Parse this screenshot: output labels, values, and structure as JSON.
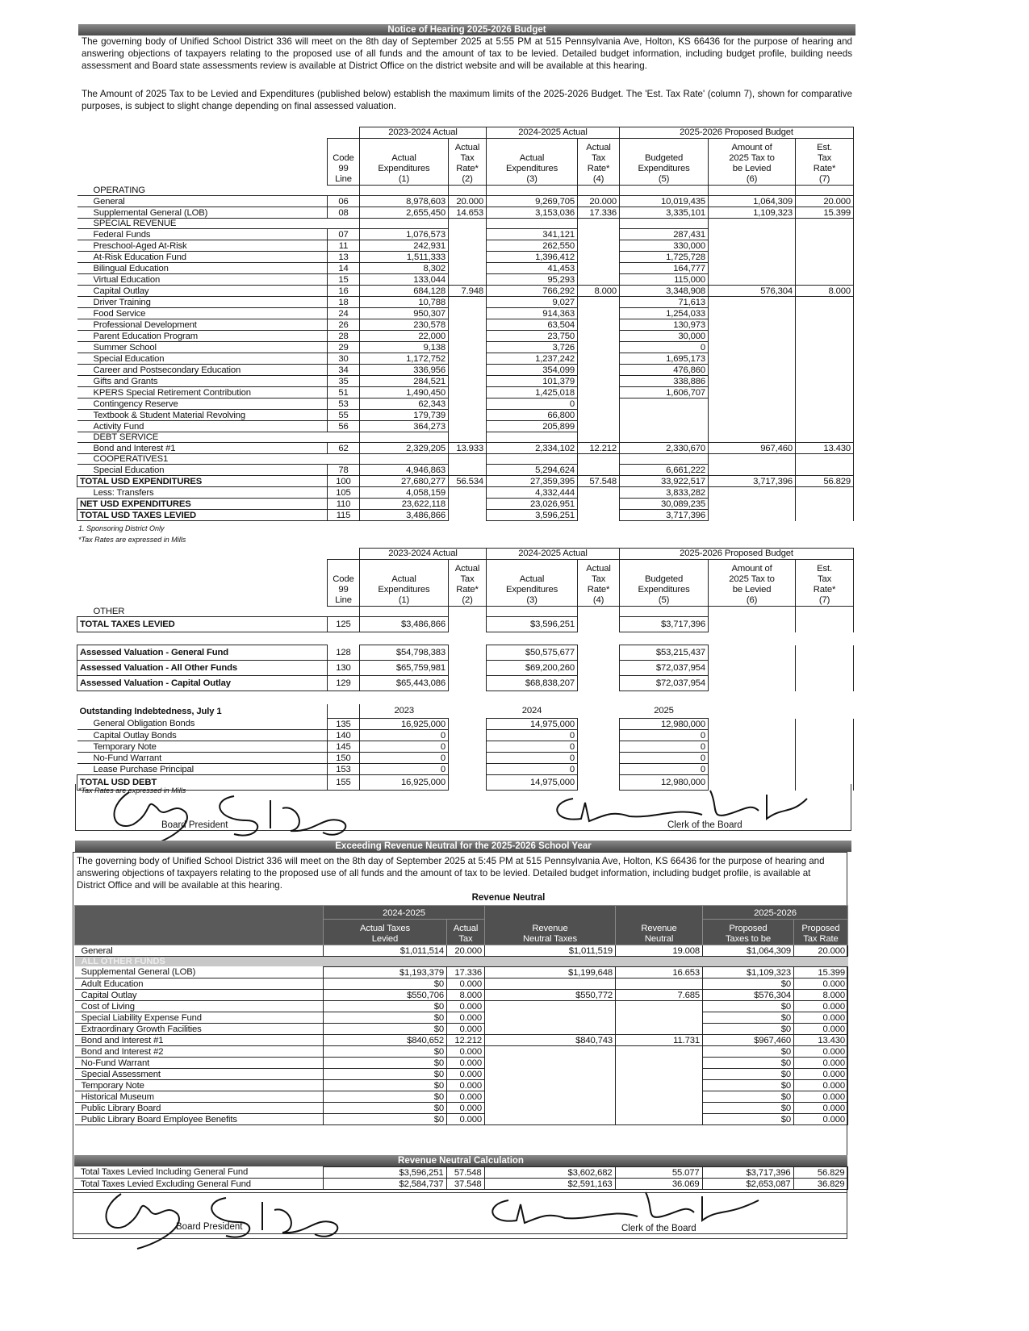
{
  "notice": {
    "title": "Notice of Hearing 2025-2026 Budget",
    "paragraph1": "The governing body of Unified School District 336 will meet on the 8th  day of September 2025 at 5:55 PM at 515 Pennsylvania Ave, Holton, KS 66436 for the purpose of hearing and answering objections of taxpayers relating to the proposed use of all funds and the amount of tax to be levied. Detailed budget information, including budget profile, building needs assessment and Board state assessments review is available at District Office on the district website and will be available at this hearing.",
    "paragraph2": "The Amount of 2025 Tax to be Levied and Expenditures (published below) establish the maximum limits of the 2025-2026 Budget.  The 'Est. Tax Rate' (column 7), shown for comparative purposes, is subject to slight change depending on final assessed valuation."
  },
  "budget_headers": {
    "groups": [
      "2023-2024 Actual",
      "2024-2025 Actual",
      "2025-2026 Proposed Budget"
    ],
    "columns": [
      "Code\n99\nLine",
      "Actual\nExpenditures\n(1)",
      "Actual\nTax\nRate*\n(2)",
      "Actual\nExpenditures\n(3)",
      "Actual\nTax\nRate*\n(4)",
      "Budgeted\nExpenditures\n(5)",
      "Amount of\n2025 Tax to\nbe Levied\n(6)",
      "Est.\nTax\nRate*\n(7)"
    ]
  },
  "budget_table": {
    "rows": [
      {
        "type": "section",
        "label": "OPERATING"
      },
      {
        "label": "General",
        "code": "06",
        "values": [
          "8,978,603",
          "20.000",
          "9,269,705",
          "20.000",
          "10,019,435",
          "1,064,309",
          "20.000"
        ]
      },
      {
        "label": "Supplemental General (LOB)",
        "code": "08",
        "values": [
          "2,655,450",
          "14.653",
          "3,153,036",
          "17.336",
          "3,335,101",
          "1,109,323",
          "15.399"
        ]
      },
      {
        "type": "section",
        "label": "SPECIAL REVENUE"
      },
      {
        "label": "Federal Funds",
        "code": "07",
        "values": [
          "1,076,573",
          "",
          "341,121",
          "",
          "287,431",
          "",
          ""
        ]
      },
      {
        "label": "Preschool-Aged At-Risk",
        "code": "11",
        "values": [
          "242,931",
          "",
          "262,550",
          "",
          "330,000",
          "",
          ""
        ]
      },
      {
        "label": "At-Risk Education Fund",
        "code": "13",
        "values": [
          "1,511,333",
          "",
          "1,396,412",
          "",
          "1,725,728",
          "",
          ""
        ]
      },
      {
        "label": "Bilingual Education",
        "code": "14",
        "values": [
          "8,302",
          "",
          "41,453",
          "",
          "164,777",
          "",
          ""
        ]
      },
      {
        "label": "Virtual Education",
        "code": "15",
        "values": [
          "133,044",
          "",
          "95,293",
          "",
          "115,000",
          "",
          ""
        ]
      },
      {
        "label": "Capital Outlay",
        "code": "16",
        "values": [
          "684,128",
          "7.948",
          "766,292",
          "8.000",
          "3,348,908",
          "576,304",
          "8.000"
        ]
      },
      {
        "label": "Driver Training",
        "code": "18",
        "values": [
          "10,788",
          "",
          "9,027",
          "",
          "71,613",
          "",
          ""
        ]
      },
      {
        "label": "Food Service",
        "code": "24",
        "values": [
          "950,307",
          "",
          "914,363",
          "",
          "1,254,033",
          "",
          ""
        ]
      },
      {
        "label": "Professional Development",
        "code": "26",
        "values": [
          "230,578",
          "",
          "63,504",
          "",
          "130,973",
          "",
          ""
        ]
      },
      {
        "label": "Parent Education Program",
        "code": "28",
        "values": [
          "22,000",
          "",
          "23,750",
          "",
          "30,000",
          "",
          ""
        ]
      },
      {
        "label": "Summer School",
        "code": "29",
        "values": [
          "9,138",
          "",
          "3,726",
          "",
          "0",
          "",
          ""
        ]
      },
      {
        "label": "Special Education",
        "code": "30",
        "values": [
          "1,172,752",
          "",
          "1,237,242",
          "",
          "1,695,173",
          "",
          ""
        ]
      },
      {
        "label": "Career and Postsecondary Education",
        "code": "34",
        "values": [
          "336,956",
          "",
          "354,099",
          "",
          "476,860",
          "",
          ""
        ]
      },
      {
        "label": "Gifts and Grants",
        "code": "35",
        "values": [
          "284,521",
          "",
          "101,379",
          "",
          "338,886",
          "",
          ""
        ]
      },
      {
        "label": "KPERS Special Retirement Contribution",
        "code": "51",
        "values": [
          "1,490,450",
          "",
          "1,425,018",
          "",
          "1,606,707",
          "",
          ""
        ]
      },
      {
        "label": "Contingency Reserve",
        "code": "53",
        "values": [
          "62,343",
          "",
          "0",
          "",
          "",
          "",
          ""
        ]
      },
      {
        "label": "Textbook & Student Material Revolving",
        "code": "55",
        "values": [
          "179,739",
          "",
          "66,800",
          "",
          "",
          "",
          ""
        ]
      },
      {
        "label": "Activity Fund",
        "code": "56",
        "values": [
          "364,273",
          "",
          "205,899",
          "",
          "",
          "",
          ""
        ]
      },
      {
        "type": "section",
        "label": "DEBT SERVICE"
      },
      {
        "label": "Bond and Interest #1",
        "code": "62",
        "values": [
          "2,329,205",
          "13.933",
          "2,334,102",
          "12.212",
          "2,330,670",
          "967,460",
          "13.430"
        ]
      },
      {
        "type": "section",
        "label": "COOPERATIVES1"
      },
      {
        "label": "Special Education",
        "code": "78",
        "values": [
          "4,946,863",
          "",
          "5,294,624",
          "",
          "6,661,222",
          "",
          ""
        ]
      },
      {
        "type": "bold",
        "label": "TOTAL USD EXPENDITURES",
        "code": "100",
        "values": [
          "27,680,277",
          "56.534",
          "27,359,395",
          "57.548",
          "33,922,517",
          "3,717,396",
          "56.829"
        ]
      },
      {
        "label": "Less: Transfers",
        "code": "105",
        "values": [
          "4,058,159",
          "",
          "4,332,444",
          "",
          "3,833,282",
          "",
          ""
        ]
      },
      {
        "type": "bold",
        "label": "NET USD EXPENDITURES",
        "code": "110",
        "values": [
          "23,622,118",
          "",
          "23,026,951",
          "",
          "30,089,235",
          "",
          ""
        ]
      },
      {
        "type": "bold",
        "label": "TOTAL USD TAXES LEVIED",
        "code": "115",
        "values": [
          "3,486,866",
          "",
          "3,596,251",
          "",
          "3,717,396",
          "",
          ""
        ]
      }
    ],
    "footnote1": "1. Sponsoring District Only",
    "footnote2": "*Tax Rates are expressed in Mills"
  },
  "other_table": {
    "rows": [
      {
        "type": "section",
        "label": "OTHER"
      },
      {
        "type": "bold",
        "label": "TOTAL TAXES LEVIED",
        "code": "125",
        "values": [
          "$3,486,866",
          "",
          "$3,596,251",
          "",
          "$3,717,396",
          "",
          ""
        ]
      },
      {
        "type": "blank"
      },
      {
        "type": "bold",
        "label": "Assessed Valuation - General Fund",
        "code": "128",
        "values": [
          "$54,798,383",
          "",
          "$50,575,677",
          "",
          "$53,215,437",
          "",
          ""
        ]
      },
      {
        "type": "bold",
        "label": "Assessed Valuation - All Other Funds",
        "code": "130",
        "values": [
          "$65,759,981",
          "",
          "$69,200,260",
          "",
          "$72,037,954",
          "",
          ""
        ]
      },
      {
        "type": "bold",
        "label": "Assessed Valuation - Capital Outlay",
        "code": "129",
        "values": [
          "$65,443,086",
          "",
          "$68,838,207",
          "",
          "$72,037,954",
          "",
          ""
        ]
      },
      {
        "type": "blank"
      },
      {
        "type": "heading",
        "label": "Outstanding Indebtedness, July 1",
        "code": "",
        "values": [
          "2023",
          "",
          "2024",
          "",
          "2025",
          "",
          ""
        ]
      },
      {
        "label": "General Obligation Bonds",
        "code": "135",
        "values": [
          "16,925,000",
          "",
          "14,975,000",
          "",
          "12,980,000",
          "",
          ""
        ]
      },
      {
        "label": "Capital Outlay Bonds",
        "code": "140",
        "values": [
          "0",
          "",
          "0",
          "",
          "0",
          "",
          ""
        ]
      },
      {
        "label": "Temporary Note",
        "code": "145",
        "values": [
          "0",
          "",
          "0",
          "",
          "0",
          "",
          ""
        ]
      },
      {
        "label": "No-Fund Warrant",
        "code": "150",
        "values": [
          "0",
          "",
          "0",
          "",
          "0",
          "",
          ""
        ]
      },
      {
        "label": "Lease Purchase Principal",
        "code": "153",
        "values": [
          "0",
          "",
          "0",
          "",
          "0",
          "",
          ""
        ]
      },
      {
        "type": "bold",
        "label": "TOTAL USD DEBT",
        "code": "155",
        "values": [
          "16,925,000",
          "",
          "14,975,000",
          "",
          "12,980,000",
          "",
          ""
        ]
      }
    ],
    "footnote": "*Tax Rates are expressed in Mills"
  },
  "signatures": {
    "president_label": "Board President",
    "clerk_label": "Clerk of the Board"
  },
  "revenue_neutral": {
    "banner": "Exceeding Revenue Neutral for the 2025-2026 School Year",
    "paragraph": "The governing body of Unified School District 336 will meet on the 8th  day of September 2025 at 5:45 PM at 515 Pennsylvania Ave, Holton, KS 66436 for the purpose of hearing and answering objections of taxpayers relating to the proposed use of all funds and the amount of tax to be levied.  Detailed budget information, including budget profile, is available at District Office and will be available at this hearing.",
    "title": "Revenue Neutral",
    "group_2024": "2024-2025",
    "group_2025": "2025-2026",
    "columns": [
      "Actual Taxes\nLevied",
      "Actual\nTax",
      "Revenue\nNeutral Taxes",
      "Revenue\nNeutral",
      "Proposed\nTaxes to be",
      "Proposed\nTax Rate"
    ],
    "rows": [
      {
        "label": "General",
        "values": [
          "$1,011,514",
          "20.000",
          "$1,011,519",
          "19.008",
          "$1,064,309",
          "20.000"
        ]
      },
      {
        "type": "band",
        "label": "ALL OTHER FUNDS"
      },
      {
        "label": "Supplemental General (LOB)",
        "values": [
          "$1,193,379",
          "17.336",
          "$1,199,648",
          "16.653",
          "$1,109,323",
          "15.399"
        ]
      },
      {
        "label": "Adult Education",
        "values": [
          "$0",
          "0.000",
          "",
          "",
          "$0",
          "0.000"
        ]
      },
      {
        "label": "Capital Outlay",
        "values": [
          "$550,706",
          "8.000",
          "$550,772",
          "7.685",
          "$576,304",
          "8.000"
        ]
      },
      {
        "label": "Cost of Living",
        "values": [
          "$0",
          "0.000",
          "",
          "",
          "$0",
          "0.000"
        ]
      },
      {
        "label": "Special Liability Expense Fund",
        "values": [
          "$0",
          "0.000",
          "",
          "",
          "$0",
          "0.000"
        ]
      },
      {
        "label": "Extraordinary Growth Facilities",
        "values": [
          "$0",
          "0.000",
          "",
          "",
          "$0",
          "0.000"
        ]
      },
      {
        "label": "Bond and Interest #1",
        "values": [
          "$840,652",
          "12.212",
          "$840,743",
          "11.731",
          "$967,460",
          "13.430"
        ]
      },
      {
        "label": "Bond and Interest #2",
        "values": [
          "$0",
          "0.000",
          "",
          "",
          "$0",
          "0.000"
        ]
      },
      {
        "label": "No-Fund Warrant",
        "values": [
          "$0",
          "0.000",
          "",
          "",
          "$0",
          "0.000"
        ]
      },
      {
        "label": "Special Assessment",
        "values": [
          "$0",
          "0.000",
          "",
          "",
          "$0",
          "0.000"
        ]
      },
      {
        "label": "Temporary Note",
        "values": [
          "$0",
          "0.000",
          "",
          "",
          "$0",
          "0.000"
        ]
      },
      {
        "label": "Historical Museum",
        "values": [
          "$0",
          "0.000",
          "",
          "",
          "$0",
          "0.000"
        ]
      },
      {
        "label": "Public Library Board",
        "values": [
          "$0",
          "0.000",
          "",
          "",
          "$0",
          "0.000"
        ]
      },
      {
        "label": "Public Library Board Employee Benefits",
        "values": [
          "$0",
          "0.000",
          "",
          "",
          "$0",
          "0.000"
        ]
      }
    ],
    "calc_banner": "Revenue Neutral Calculation",
    "calc_rows": [
      {
        "label": "Total Taxes Levied Including General Fund",
        "values": [
          "$3,596,251",
          "57.548",
          "$3,602,682",
          "55.077",
          "$3,717,396",
          "56.829"
        ]
      },
      {
        "label": "Total Taxes Levied Excluding General Fund",
        "values": [
          "$2,584,737",
          "37.548",
          "$2,591,163",
          "36.069",
          "$2,653,087",
          "36.829"
        ]
      }
    ]
  }
}
